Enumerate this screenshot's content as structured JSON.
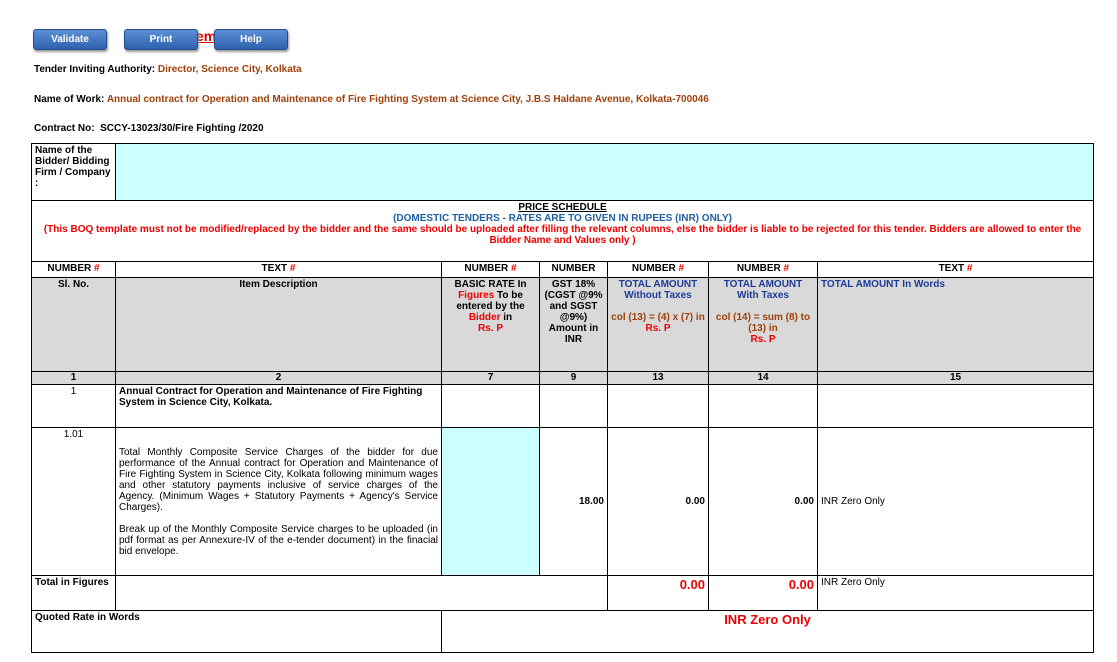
{
  "toolbar": {
    "validate": "Validate",
    "print": "Print",
    "help": "Help",
    "title_fragment": "em                    Q"
  },
  "header": {
    "authority_label": "Tender Inviting Authority:",
    "authority_value": "Director, Science City, Kolkata",
    "work_label": "Name of Work:",
    "work_value": "Annual contract for Operation and Maintenance of Fire Fighting System at Science City, J.B.S Haldane Avenue, Kolkata-700046",
    "contract_label": "Contract No:",
    "contract_value": "SCCY-13023/30/Fire Fighting /2020"
  },
  "bidder": {
    "label": "Name of the Bidder/ Bidding Firm / Company :",
    "value": ""
  },
  "schedule": {
    "title": "PRICE SCHEDULE",
    "subtitle": "(DOMESTIC TENDERS - RATES ARE TO GIVEN IN RUPEES (INR) ONLY)",
    "warning": "(This BOQ template must not be modified/replaced by the bidder and the same should be uploaded after filling the relevant columns, else the bidder is liable to be rejected for this tender. Bidders are allowed to enter the Bidder Name and Values only )"
  },
  "types": [
    "NUMBER",
    "TEXT",
    "NUMBER",
    "NUMBER",
    "NUMBER",
    "NUMBER",
    "TEXT"
  ],
  "hash": "#",
  "columns": {
    "sl": "Sl. No.",
    "desc": "Item Description",
    "rate_a": "BASIC RATE In",
    "rate_b": "Figures",
    "rate_c": "To be entered by the",
    "rate_d": "Bidder",
    "rate_e": "in",
    "rate_f": "Rs.      P",
    "gst": "GST 18% (CGST @9% and SGST @9%) Amount in INR",
    "t13_a": "TOTAL AMOUNT Without Taxes",
    "t13_b": "col (13) = (4) x (7) in",
    "t13_c": "Rs.      P",
    "t14_a": "TOTAL AMOUNT With Taxes",
    "t14_b": "col (14) = sum (8) to (13) in",
    "t14_c": "Rs.      P",
    "words": "TOTAL AMOUNT In Words"
  },
  "col_numbers": [
    "1",
    "2",
    "7",
    "9",
    "13",
    "14",
    "15"
  ],
  "rows": [
    {
      "sl": "1",
      "desc": "Annual Contract for  Operation and Maintenance of Fire Fighting System in Science City, Kolkata."
    },
    {
      "sl": "1.01",
      "desc": "Total Monthly Composite Service  Charges of the bidder for due performance of the  Annual contract for Operation and Maintenance of Fire Fighting System  in Science City, Kolkata following minimum wages and other statutory payments inclusive of service charges of the Agency. (Minimum Wages + Statutory Payments + Agency's Service Charges).",
      "desc2": "Break up of the Monthly Composite Service charges to be uploaded (in pdf format as per Annexure-IV of the e-tender document) in the finacial bid envelope.",
      "rate": "",
      "gst": "18.00",
      "t13": "0.00",
      "t14": "0.00",
      "words": "INR Zero Only"
    }
  ],
  "total": {
    "label": "Total in Figures",
    "t13": "0.00",
    "t14": "0.00",
    "words": "INR Zero Only"
  },
  "quoted": {
    "label": "Quoted Rate in Words",
    "value": "INR Zero Only"
  }
}
